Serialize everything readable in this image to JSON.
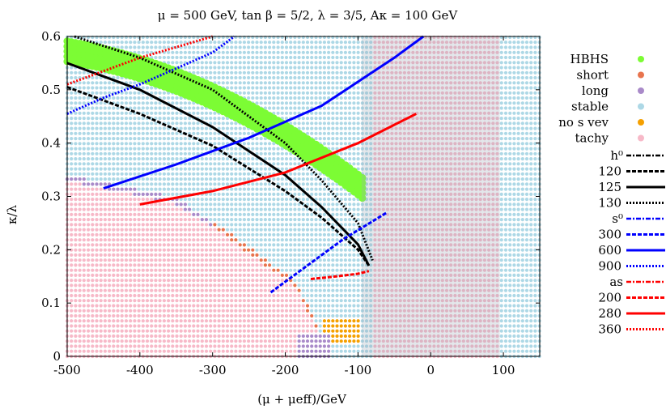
{
  "chart_data": {
    "type": "scatter",
    "title": "μ = 500 GeV, tan β = 5/2, λ = 3/5, Aκ = 100 GeV",
    "xlabel": "(μ + μeff)/GeV",
    "ylabel": "κ/λ",
    "xlim": [
      -500,
      150
    ],
    "ylim": [
      0,
      0.6
    ],
    "xticks": [
      "-500",
      "-400",
      "-300",
      "-200",
      "-100",
      "0",
      "100"
    ],
    "yticks": [
      "0",
      "0.1",
      "0.2",
      "0.3",
      "0.4",
      "0.5",
      "0.6"
    ],
    "shaded_x_range": [
      -95,
      95
    ],
    "legend_position": "right",
    "point_categories": [
      {
        "name": "HBHS",
        "color": "#7cfc34"
      },
      {
        "name": "short",
        "color": "#e8744e"
      },
      {
        "name": "long",
        "color": "#a98ac9"
      },
      {
        "name": "stable",
        "color": "#add8e6"
      },
      {
        "name": "no s vev",
        "color": "#f5a000"
      },
      {
        "name": "tachy",
        "color": "#f7b9c8"
      }
    ],
    "contour_groups": [
      {
        "name": "h⁰",
        "color": "#000000",
        "lines": [
          {
            "label": "120",
            "style": "dashed",
            "x": [
              -500,
              -400,
              -300,
              -200,
              -150,
              -100,
              -85
            ],
            "y": [
              0.505,
              0.455,
              0.395,
              0.31,
              0.26,
              0.2,
              0.17
            ]
          },
          {
            "label": "125",
            "style": "solid",
            "x": [
              -500,
              -400,
              -300,
              -200,
              -150,
              -100,
              -85
            ],
            "y": [
              0.55,
              0.5,
              0.43,
              0.34,
              0.28,
              0.21,
              0.17
            ]
          },
          {
            "label": "130",
            "style": "dotted",
            "x": [
              -490,
              -400,
              -300,
              -200,
              -150,
              -100,
              -80
            ],
            "y": [
              0.6,
              0.56,
              0.5,
              0.4,
              0.33,
              0.25,
              0.18
            ]
          }
        ]
      },
      {
        "name": "s⁰",
        "color": "#0000ff",
        "lines": [
          {
            "label": "300",
            "style": "dashed",
            "x": [
              -220,
              -160,
              -120,
              -60
            ],
            "y": [
              0.12,
              0.18,
              0.22,
              0.27
            ]
          },
          {
            "label": "600",
            "style": "solid",
            "x": [
              -450,
              -350,
              -250,
              -150,
              -50,
              -10
            ],
            "y": [
              0.315,
              0.36,
              0.41,
              0.47,
              0.56,
              0.6
            ]
          },
          {
            "label": "900",
            "style": "dotted",
            "x": [
              -500,
              -450,
              -400,
              -300,
              -270
            ],
            "y": [
              0.455,
              0.485,
              0.51,
              0.57,
              0.6
            ]
          }
        ]
      },
      {
        "name": "as",
        "color": "#ff0000",
        "lines": [
          {
            "label": "200",
            "style": "dashed",
            "x": [
              -165,
              -130,
              -100,
              -85
            ],
            "y": [
              0.145,
              0.15,
              0.155,
              0.16
            ]
          },
          {
            "label": "280",
            "style": "solid",
            "x": [
              -400,
              -300,
              -200,
              -100,
              -20
            ],
            "y": [
              0.285,
              0.31,
              0.345,
              0.4,
              0.455
            ]
          },
          {
            "label": "360",
            "style": "dotted",
            "x": [
              -500,
              -450,
              -400,
              -350,
              -300
            ],
            "y": [
              0.51,
              0.535,
              0.56,
              0.58,
              0.6
            ]
          }
        ]
      }
    ]
  }
}
